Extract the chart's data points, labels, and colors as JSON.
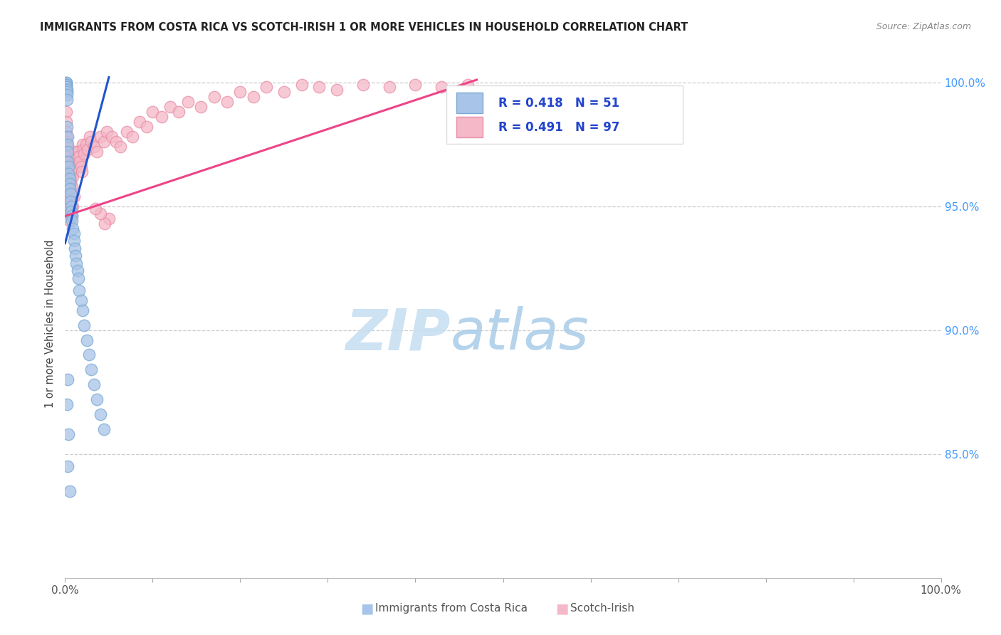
{
  "title": "IMMIGRANTS FROM COSTA RICA VS SCOTCH-IRISH 1 OR MORE VEHICLES IN HOUSEHOLD CORRELATION CHART",
  "source": "Source: ZipAtlas.com",
  "ylabel": "1 or more Vehicles in Household",
  "blue_color": "#A8C4E8",
  "blue_edge": "#7BAAD4",
  "pink_color": "#F5B8C8",
  "pink_edge": "#E890A8",
  "blue_line_color": "#2255CC",
  "pink_line_color": "#EE4488",
  "right_axis_color": "#4499FF",
  "legend_text_color": "#2244CC",
  "watermark_color": "#D0E8F5",
  "title_color": "#222222",
  "source_color": "#888888",
  "grid_color": "#CCCCCC",
  "blue_x": [
    0.001,
    0.001,
    0.001,
    0.001,
    0.001,
    0.001,
    0.001,
    0.002,
    0.002,
    0.002,
    0.002,
    0.002,
    0.003,
    0.003,
    0.003,
    0.003,
    0.004,
    0.004,
    0.005,
    0.005,
    0.005,
    0.006,
    0.006,
    0.007,
    0.007,
    0.008,
    0.008,
    0.009,
    0.01,
    0.01,
    0.011,
    0.012,
    0.013,
    0.014,
    0.015,
    0.016,
    0.018,
    0.02,
    0.022,
    0.025,
    0.027,
    0.03,
    0.033,
    0.036,
    0.04,
    0.044,
    0.003,
    0.002,
    0.004,
    0.003,
    0.005
  ],
  "blue_y": [
    1.0,
    1.0,
    0.999,
    0.999,
    0.998,
    0.998,
    0.997,
    0.997,
    0.996,
    0.995,
    0.993,
    0.982,
    0.978,
    0.975,
    0.972,
    0.968,
    0.966,
    0.963,
    0.961,
    0.959,
    0.957,
    0.955,
    0.952,
    0.95,
    0.948,
    0.946,
    0.944,
    0.941,
    0.939,
    0.936,
    0.933,
    0.93,
    0.927,
    0.924,
    0.921,
    0.916,
    0.912,
    0.908,
    0.902,
    0.896,
    0.89,
    0.884,
    0.878,
    0.872,
    0.866,
    0.86,
    0.88,
    0.87,
    0.858,
    0.845,
    0.835
  ],
  "pink_x": [
    0.001,
    0.001,
    0.001,
    0.001,
    0.002,
    0.002,
    0.002,
    0.003,
    0.003,
    0.003,
    0.003,
    0.004,
    0.004,
    0.004,
    0.005,
    0.005,
    0.005,
    0.006,
    0.006,
    0.007,
    0.007,
    0.008,
    0.008,
    0.009,
    0.009,
    0.01,
    0.01,
    0.011,
    0.011,
    0.012,
    0.012,
    0.013,
    0.014,
    0.015,
    0.016,
    0.017,
    0.018,
    0.019,
    0.02,
    0.021,
    0.022,
    0.024,
    0.026,
    0.028,
    0.03,
    0.033,
    0.036,
    0.04,
    0.044,
    0.048,
    0.053,
    0.058,
    0.063,
    0.07,
    0.077,
    0.085,
    0.093,
    0.1,
    0.11,
    0.12,
    0.13,
    0.14,
    0.155,
    0.17,
    0.185,
    0.2,
    0.215,
    0.23,
    0.25,
    0.27,
    0.29,
    0.31,
    0.34,
    0.37,
    0.4,
    0.43,
    0.46,
    0.002,
    0.003,
    0.004,
    0.005,
    0.006,
    0.007,
    0.008,
    0.004,
    0.003,
    0.002,
    0.005,
    0.006,
    0.007,
    0.008,
    0.009,
    0.01,
    0.05,
    0.045,
    0.04,
    0.035
  ],
  "pink_y": [
    0.988,
    0.984,
    0.98,
    0.978,
    0.976,
    0.974,
    0.972,
    0.97,
    0.968,
    0.966,
    0.964,
    0.962,
    0.96,
    0.958,
    0.956,
    0.966,
    0.964,
    0.962,
    0.96,
    0.965,
    0.963,
    0.968,
    0.966,
    0.964,
    0.962,
    0.967,
    0.965,
    0.97,
    0.968,
    0.966,
    0.972,
    0.97,
    0.968,
    0.972,
    0.97,
    0.968,
    0.966,
    0.964,
    0.975,
    0.973,
    0.971,
    0.975,
    0.973,
    0.978,
    0.976,
    0.974,
    0.972,
    0.978,
    0.976,
    0.98,
    0.978,
    0.976,
    0.974,
    0.98,
    0.978,
    0.984,
    0.982,
    0.988,
    0.986,
    0.99,
    0.988,
    0.992,
    0.99,
    0.994,
    0.992,
    0.996,
    0.994,
    0.998,
    0.996,
    0.999,
    0.998,
    0.997,
    0.999,
    0.998,
    0.999,
    0.998,
    0.999,
    0.954,
    0.952,
    0.96,
    0.958,
    0.956,
    0.954,
    0.958,
    0.95,
    0.948,
    0.946,
    0.944,
    0.948,
    0.952,
    0.946,
    0.95,
    0.954,
    0.945,
    0.943,
    0.947,
    0.949
  ],
  "blue_line": [
    0.0,
    0.05,
    0.935,
    1.002
  ],
  "pink_line": [
    0.0,
    0.47,
    0.946,
    1.001
  ],
  "xlim": [
    0.0,
    1.0
  ],
  "ylim": [
    0.8,
    1.005
  ],
  "yticks": [
    0.85,
    0.9,
    0.95,
    1.0
  ],
  "ytick_labels": [
    "85.0%",
    "90.0%",
    "95.0%",
    "100.0%"
  ],
  "xticks": [
    0.0,
    0.1,
    0.2,
    0.3,
    0.4,
    0.5,
    0.6,
    0.7,
    0.8,
    0.9,
    1.0
  ],
  "xtick_labels": [
    "0.0%",
    "",
    "",
    "",
    "",
    "",
    "",
    "",
    "",
    "",
    "100.0%"
  ]
}
